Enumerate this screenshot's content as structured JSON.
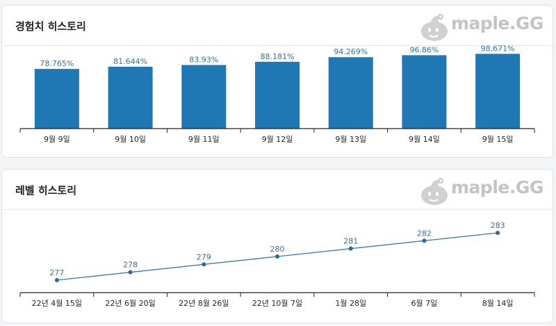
{
  "brand": {
    "name": "maple.GG",
    "accent": "#1f77b4",
    "logo_color": "#c4c4c4"
  },
  "icons": {
    "logo": "slime-mascot-icon"
  },
  "exp_card": {
    "title": "경험치 히스토리"
  },
  "level_card": {
    "title": "레벨 히스토리"
  },
  "chart_data": [
    {
      "type": "bar",
      "title": "",
      "categories": [
        "9월 9일",
        "9월 10일",
        "9월 11일",
        "9월 12일",
        "9월 13일",
        "9월 14일",
        "9월 15일"
      ],
      "values": [
        78.765,
        81.644,
        83.93,
        88.181,
        94.269,
        96.86,
        98.671
      ],
      "labels": [
        "78.765%",
        "81.644%",
        "83.93%",
        "88.181%",
        "94.269%",
        "96.86%",
        "98.671%"
      ],
      "ylim": [
        0,
        100
      ],
      "grid": false,
      "color": "#1f77b4"
    },
    {
      "type": "line",
      "title": "",
      "categories": [
        "22년 4월 15일",
        "22년 6월 20일",
        "22년 8월 26일",
        "22년 10월 7일",
        "1월 28일",
        "6월 7일",
        "8월 14일"
      ],
      "values": [
        277,
        278,
        279,
        280,
        281,
        282,
        283
      ],
      "labels": [
        "277",
        "278",
        "279",
        "280",
        "281",
        "282",
        "283"
      ],
      "grid": false,
      "color": "#3a7cab"
    }
  ]
}
